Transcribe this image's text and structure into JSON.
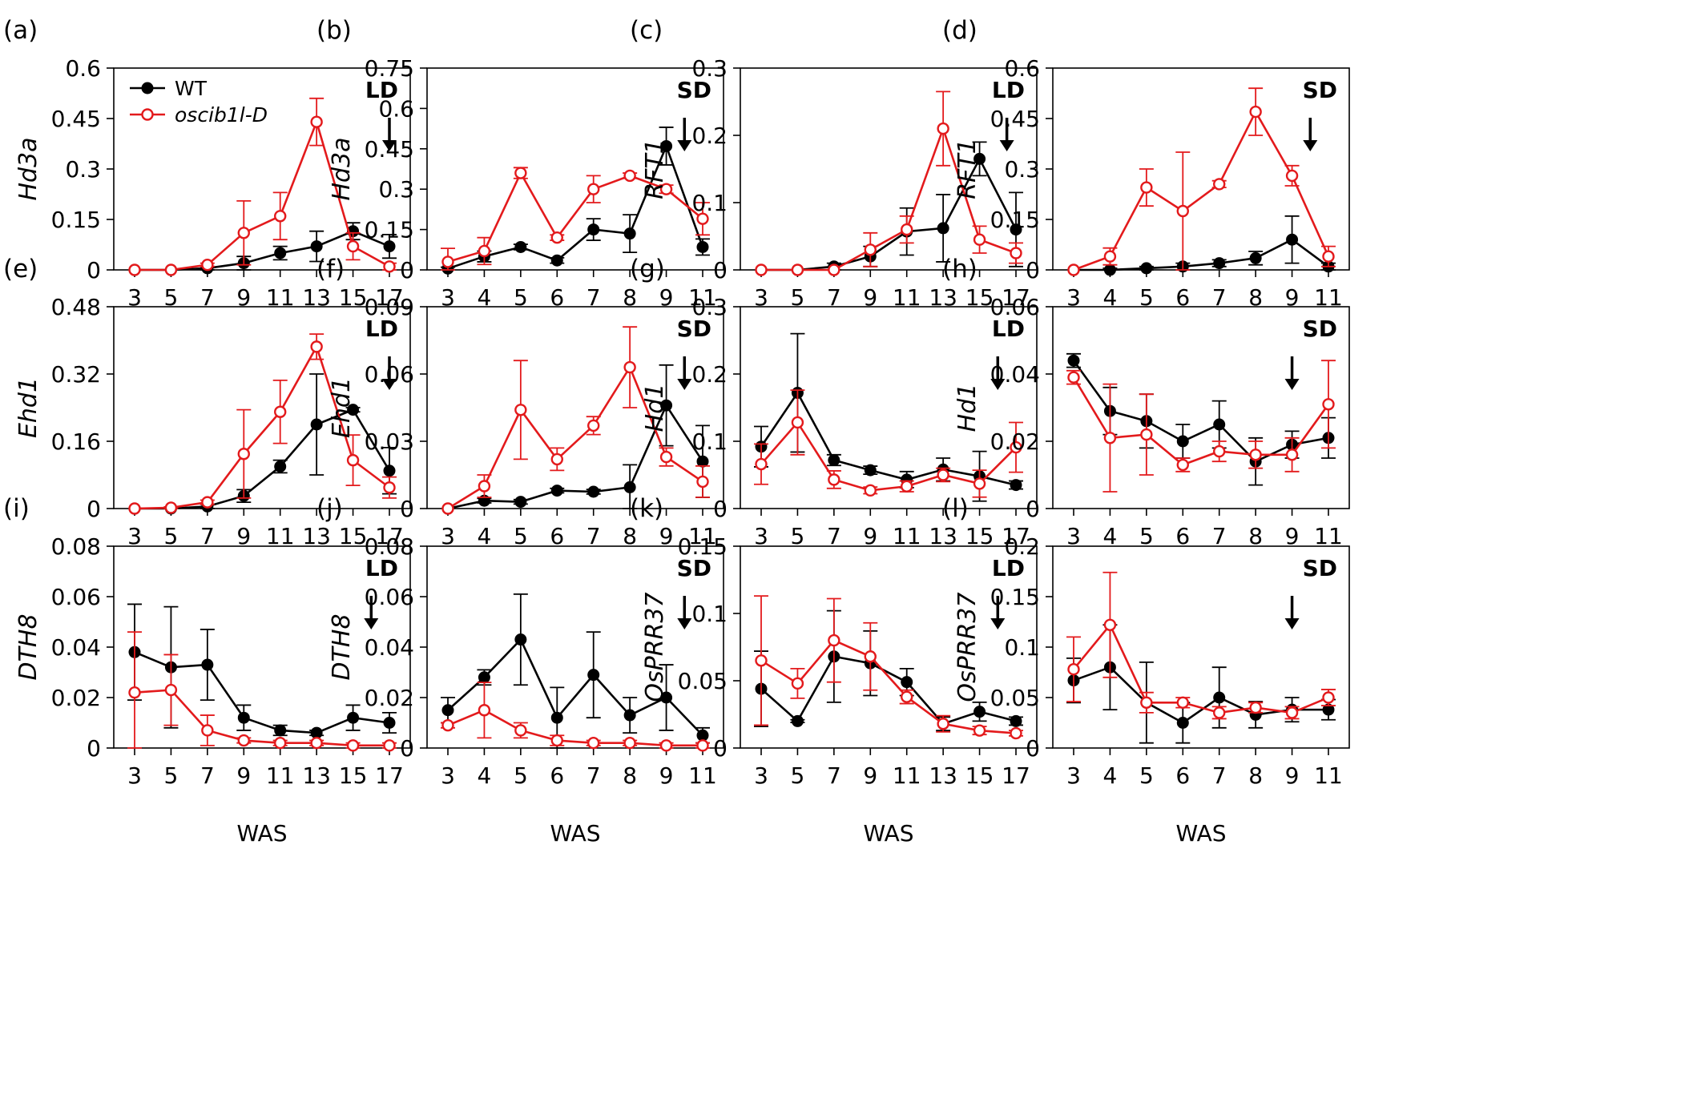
{
  "legend": {
    "entries": [
      {
        "name": "WT",
        "color": "#000000",
        "marker": "filled-circle"
      },
      {
        "name": "oscib1l-D",
        "color": "#e31a1c",
        "marker": "open-circle"
      }
    ]
  },
  "chart_data": [
    {
      "id": "a",
      "panel_tag": "(a)",
      "type": "line",
      "condition": "LD",
      "ylabel": "Hd3a",
      "xlabel": "",
      "categories": [
        "3",
        "5",
        "7",
        "9",
        "11",
        "13",
        "15",
        "17"
      ],
      "ylim": [
        0,
        0.6
      ],
      "yticks": [
        "0",
        "0.15",
        "0.3",
        "0.45",
        "0.6"
      ],
      "arrow_at": 17,
      "series": [
        {
          "name": "WT",
          "values": [
            0,
            0,
            0.005,
            0.02,
            0.05,
            0.07,
            0.115,
            0.07
          ],
          "err": [
            0,
            0,
            0.005,
            0.02,
            0.02,
            0.045,
            0.025,
            0.035
          ]
        },
        {
          "name": "oscib1l-D",
          "values": [
            0,
            0,
            0.015,
            0.11,
            0.16,
            0.44,
            0.07,
            0.01
          ],
          "err": [
            0,
            0,
            0.005,
            0.095,
            0.07,
            0.07,
            0.04,
            0.01
          ]
        }
      ]
    },
    {
      "id": "b",
      "panel_tag": "(b)",
      "type": "line",
      "condition": "SD",
      "ylabel": "Hd3a",
      "xlabel": "",
      "categories": [
        "3",
        "4",
        "5",
        "6",
        "7",
        "8",
        "9",
        "11"
      ],
      "ylim": [
        0,
        0.75
      ],
      "yticks": [
        "0",
        "0.15",
        "0.3",
        "0.45",
        "0.6",
        "0.75"
      ],
      "arrow_at": 10,
      "series": [
        {
          "name": "WT",
          "values": [
            0.005,
            0.05,
            0.085,
            0.035,
            0.15,
            0.135,
            0.46,
            0.085
          ],
          "err": [
            0.005,
            0.02,
            0.01,
            0.01,
            0.04,
            0.07,
            0.07,
            0.03
          ]
        },
        {
          "name": "oscib1l-D",
          "values": [
            0.03,
            0.07,
            0.36,
            0.12,
            0.3,
            0.35,
            0.3,
            0.19
          ],
          "err": [
            0.05,
            0.05,
            0.02,
            0.01,
            0.05,
            0.01,
            0.015,
            0.06
          ]
        }
      ]
    },
    {
      "id": "c",
      "panel_tag": "(c)",
      "type": "line",
      "condition": "LD",
      "ylabel": "RFT1",
      "xlabel": "",
      "categories": [
        "3",
        "5",
        "7",
        "9",
        "11",
        "13",
        "15",
        "17"
      ],
      "ylim": [
        0,
        0.3
      ],
      "yticks": [
        "0",
        "0.1",
        "0.2",
        "0.3"
      ],
      "arrow_at": 16.5,
      "series": [
        {
          "name": "WT",
          "values": [
            0,
            0,
            0.005,
            0.02,
            0.057,
            0.062,
            0.165,
            0.06
          ],
          "err": [
            0,
            0,
            0.005,
            0.015,
            0.035,
            0.05,
            0.025,
            0.055
          ]
        },
        {
          "name": "oscib1l-D",
          "values": [
            0,
            0,
            0,
            0.03,
            0.06,
            0.21,
            0.045,
            0.025
          ],
          "err": [
            0,
            0,
            0,
            0.025,
            0.02,
            0.055,
            0.02,
            0.015
          ]
        }
      ]
    },
    {
      "id": "d",
      "panel_tag": "(d)",
      "type": "line",
      "condition": "SD",
      "ylabel": "RFT1",
      "xlabel": "",
      "categories": [
        "3",
        "4",
        "5",
        "6",
        "7",
        "8",
        "9",
        "11"
      ],
      "ylim": [
        0,
        0.6
      ],
      "yticks": [
        "0",
        "0.15",
        "0.3",
        "0.45",
        "0.6"
      ],
      "arrow_at": 10,
      "series": [
        {
          "name": "WT",
          "values": [
            0,
            0,
            0.005,
            0.01,
            0.02,
            0.035,
            0.09,
            0.01
          ],
          "err": [
            0,
            0.005,
            0.005,
            0.01,
            0.01,
            0.02,
            0.07,
            0.01
          ]
        },
        {
          "name": "oscib1l-D",
          "values": [
            0,
            0.04,
            0.245,
            0.175,
            0.255,
            0.47,
            0.28,
            0.04
          ],
          "err": [
            0,
            0.025,
            0.055,
            0.175,
            0.01,
            0.07,
            0.03,
            0.03
          ]
        }
      ]
    },
    {
      "id": "e",
      "panel_tag": "(e)",
      "type": "line",
      "condition": "LD",
      "ylabel": "Ehd1",
      "xlabel": "",
      "categories": [
        "3",
        "5",
        "7",
        "9",
        "11",
        "13",
        "15",
        "17"
      ],
      "ylim": [
        0,
        0.48
      ],
      "yticks": [
        "0",
        "0.16",
        "0.32",
        "0.48"
      ],
      "arrow_at": 17,
      "series": [
        {
          "name": "WT",
          "values": [
            0,
            0,
            0.005,
            0.03,
            0.1,
            0.2,
            0.235,
            0.09
          ],
          "err": [
            0,
            0,
            0.005,
            0.015,
            0.015,
            0.12,
            0.005,
            0.055
          ]
        },
        {
          "name": "oscib1l-D",
          "values": [
            0,
            0.002,
            0.015,
            0.13,
            0.23,
            0.385,
            0.115,
            0.05
          ],
          "err": [
            0,
            0.002,
            0.005,
            0.105,
            0.075,
            0.03,
            0.06,
            0.025
          ]
        }
      ]
    },
    {
      "id": "f",
      "panel_tag": "(f)",
      "type": "line",
      "condition": "SD",
      "ylabel": "Ehd1",
      "xlabel": "",
      "categories": [
        "3",
        "4",
        "5",
        "6",
        "7",
        "8",
        "9",
        "11"
      ],
      "ylim": [
        0,
        0.09
      ],
      "yticks": [
        "0",
        "0.03",
        "0.06",
        "0.09"
      ],
      "arrow_at": 10,
      "series": [
        {
          "name": "WT",
          "values": [
            0,
            0.0035,
            0.003,
            0.008,
            0.0075,
            0.0095,
            0.046,
            0.021
          ],
          "err": [
            0,
            0.001,
            0.001,
            0.001,
            0.001,
            0.01,
            0.018,
            0.016
          ]
        },
        {
          "name": "oscib1l-D",
          "values": [
            0,
            0.01,
            0.044,
            0.022,
            0.037,
            0.063,
            0.023,
            0.012
          ],
          "err": [
            0,
            0.005,
            0.022,
            0.005,
            0.004,
            0.018,
            0.004,
            0.007
          ]
        }
      ]
    },
    {
      "id": "g",
      "panel_tag": "(g)",
      "type": "line",
      "condition": "LD",
      "ylabel": "Hd1",
      "xlabel": "",
      "categories": [
        "3",
        "5",
        "7",
        "9",
        "11",
        "13",
        "15",
        "17"
      ],
      "ylim": [
        0,
        0.3
      ],
      "yticks": [
        "0",
        "0.1",
        "0.2",
        "0.3"
      ],
      "arrow_at": 16,
      "series": [
        {
          "name": "WT",
          "values": [
            0.092,
            0.172,
            0.072,
            0.057,
            0.043,
            0.058,
            0.048,
            0.035
          ],
          "err": [
            0.03,
            0.088,
            0.008,
            0.006,
            0.012,
            0.017,
            0.037,
            0.006
          ]
        },
        {
          "name": "oscib1l-D",
          "values": [
            0.066,
            0.128,
            0.043,
            0.027,
            0.033,
            0.05,
            0.037,
            0.091
          ],
          "err": [
            0.03,
            0.048,
            0.013,
            0.005,
            0.008,
            0.01,
            0.02,
            0.037
          ]
        }
      ]
    },
    {
      "id": "h",
      "panel_tag": "(h)",
      "type": "line",
      "condition": "SD",
      "ylabel": "Hd1",
      "xlabel": "",
      "categories": [
        "3",
        "4",
        "5",
        "6",
        "7",
        "8",
        "9",
        "11"
      ],
      "ylim": [
        0,
        0.06
      ],
      "yticks": [
        "0",
        "0.02",
        "0.04",
        "0.06"
      ],
      "arrow_at": 9,
      "series": [
        {
          "name": "WT",
          "values": [
            0.044,
            0.029,
            0.026,
            0.02,
            0.025,
            0.014,
            0.019,
            0.021
          ],
          "err": [
            0.002,
            0.007,
            0.008,
            0.005,
            0.007,
            0.007,
            0.004,
            0.006
          ]
        },
        {
          "name": "oscib1l-D",
          "values": [
            0.039,
            0.021,
            0.022,
            0.013,
            0.017,
            0.016,
            0.016,
            0.031
          ],
          "err": [
            0.002,
            0.016,
            0.012,
            0.002,
            0.003,
            0.004,
            0.005,
            0.013
          ]
        }
      ]
    },
    {
      "id": "i",
      "panel_tag": "(i)",
      "type": "line",
      "condition": "LD",
      "ylabel": "DTH8",
      "xlabel": "WAS",
      "categories": [
        "3",
        "5",
        "7",
        "9",
        "11",
        "13",
        "15",
        "17"
      ],
      "ylim": [
        0,
        0.08
      ],
      "yticks": [
        "0",
        "0.02",
        "0.04",
        "0.06",
        "0.08"
      ],
      "arrow_at": 16,
      "series": [
        {
          "name": "WT",
          "values": [
            0.038,
            0.032,
            0.033,
            0.012,
            0.007,
            0.006,
            0.012,
            0.01
          ],
          "err": [
            0.019,
            0.024,
            0.014,
            0.005,
            0.002,
            0.001,
            0.005,
            0.004
          ]
        },
        {
          "name": "oscib1l-D",
          "values": [
            0.022,
            0.023,
            0.007,
            0.003,
            0.002,
            0.002,
            0.001,
            0.001
          ],
          "err": [
            0.024,
            0.014,
            0.006,
            0.001,
            0.001,
            0.001,
            0.001,
            0.001
          ]
        }
      ]
    },
    {
      "id": "j",
      "panel_tag": "(j)",
      "type": "line",
      "condition": "SD",
      "ylabel": "DTH8",
      "xlabel": "WAS",
      "categories": [
        "3",
        "4",
        "5",
        "6",
        "7",
        "8",
        "9",
        "11"
      ],
      "ylim": [
        0,
        0.08
      ],
      "yticks": [
        "0",
        "0.02",
        "0.04",
        "0.06",
        "0.08"
      ],
      "arrow_at": 10,
      "series": [
        {
          "name": "WT",
          "values": [
            0.015,
            0.028,
            0.043,
            0.012,
            0.029,
            0.013,
            0.02,
            0.005
          ],
          "err": [
            0.005,
            0.003,
            0.018,
            0.012,
            0.017,
            0.007,
            0.013,
            0.003
          ]
        },
        {
          "name": "oscib1l-D",
          "values": [
            0.009,
            0.015,
            0.007,
            0.003,
            0.002,
            0.002,
            0.001,
            0.001
          ],
          "err": [
            0.001,
            0.011,
            0.003,
            0.002,
            0.001,
            0.001,
            0.001,
            0.001
          ]
        }
      ]
    },
    {
      "id": "k",
      "panel_tag": "(k)",
      "type": "line",
      "condition": "LD",
      "ylabel": "OsPRR37",
      "xlabel": "WAS",
      "categories": [
        "3",
        "5",
        "7",
        "9",
        "11",
        "13",
        "15",
        "17"
      ],
      "ylim": [
        0,
        0.15
      ],
      "yticks": [
        "0",
        "0.05",
        "0.1",
        "0.15"
      ],
      "arrow_at": 16,
      "series": [
        {
          "name": "WT",
          "values": [
            0.044,
            0.02,
            0.068,
            0.063,
            0.049,
            0.018,
            0.027,
            0.02
          ],
          "err": [
            0.028,
            0.001,
            0.034,
            0.024,
            0.01,
            0.005,
            0.007,
            0.003
          ]
        },
        {
          "name": "oscib1l-D",
          "values": [
            0.065,
            0.048,
            0.08,
            0.068,
            0.038,
            0.018,
            0.013,
            0.011
          ],
          "err": [
            0.048,
            0.011,
            0.031,
            0.025,
            0.005,
            0.006,
            0.003,
            0.002
          ]
        }
      ]
    },
    {
      "id": "l",
      "panel_tag": "(l)",
      "type": "line",
      "condition": "SD",
      "ylabel": "OsPRR37",
      "xlabel": "WAS",
      "categories": [
        "3",
        "4",
        "5",
        "6",
        "7",
        "8",
        "9",
        "11"
      ],
      "ylim": [
        0,
        0.2
      ],
      "yticks": [
        "0",
        "0.05",
        "0.1",
        "0.15",
        "0.2"
      ],
      "arrow_at": 9,
      "series": [
        {
          "name": "WT",
          "values": [
            0.067,
            0.08,
            0.045,
            0.025,
            0.05,
            0.033,
            0.038,
            0.038
          ],
          "err": [
            0.022,
            0.042,
            0.04,
            0.02,
            0.03,
            0.013,
            0.012,
            0.01
          ]
        },
        {
          "name": "oscib1l-D",
          "values": [
            0.078,
            0.122,
            0.045,
            0.045,
            0.035,
            0.04,
            0.035,
            0.05
          ],
          "err": [
            0.032,
            0.052,
            0.01,
            0.005,
            0.006,
            0.005,
            0.006,
            0.008
          ]
        }
      ]
    }
  ]
}
